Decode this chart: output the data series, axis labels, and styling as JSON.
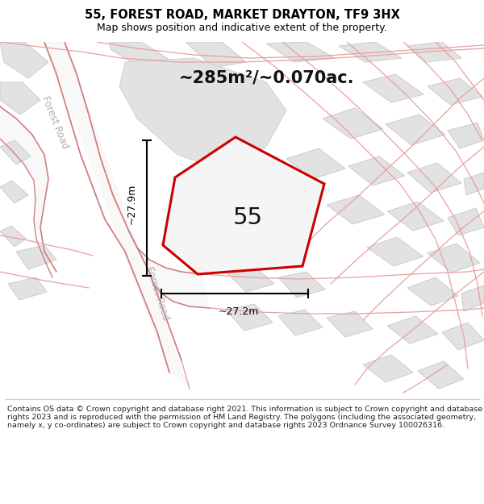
{
  "title": "55, FOREST ROAD, MARKET DRAYTON, TF9 3HX",
  "subtitle": "Map shows position and indicative extent of the property.",
  "area_label": "~285m²/~0.070ac.",
  "number_label": "55",
  "dim_horizontal": "~27.2m",
  "dim_vertical": "~27.9m",
  "road_label_left": "Forest Road",
  "road_label_diagonal": "Forest Road",
  "footer": "Contains OS data © Crown copyright and database right 2021. This information is subject to Crown copyright and database rights 2023 and is reproduced with the permission of HM Land Registry. The polygons (including the associated geometry, namely x, y co-ordinates) are subject to Crown copyright and database rights 2023 Ordnance Survey 100026316.",
  "bg_color": "#f5f5f5",
  "map_bg": "#ffffff",
  "building_color": "#e2e2e2",
  "building_edge": "#cccccc",
  "plot_fill": "#f0f0f0",
  "plot_edge_color": "#cc0000",
  "road_fill": "#ffffff",
  "road_line_color": "#e8a0a0",
  "road_line_color2": "#d08080",
  "dim_line_color": "#000000",
  "title_color": "#000000",
  "footer_color": "#222222",
  "area_label_color": "#111111",
  "number_color": "#111111",
  "road_text_color": "#b0b0b0"
}
